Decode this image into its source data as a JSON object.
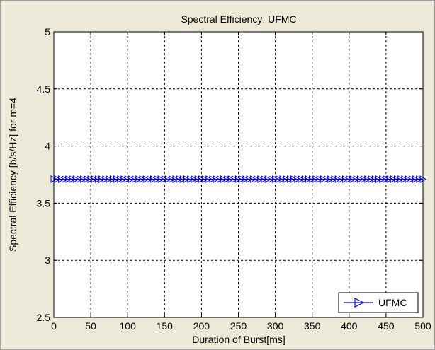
{
  "figure": {
    "background": "#ece9d8",
    "axes_background": "#ffffff"
  },
  "chart_data": {
    "type": "line",
    "title": "Spectral Efficiency: UFMC",
    "xlabel": "Duration of Burst[ms]",
    "ylabel": "Spectral Efficiency [b/s/Hz] for m=4",
    "xlim": [
      0,
      500
    ],
    "ylim": [
      2.5,
      5
    ],
    "xticks": [
      0,
      50,
      100,
      150,
      200,
      250,
      300,
      350,
      400,
      450,
      500
    ],
    "yticks": [
      2.5,
      3,
      3.5,
      4,
      4.5,
      5
    ],
    "xtick_labels": [
      "0",
      "50",
      "100",
      "150",
      "200",
      "250",
      "300",
      "350",
      "400",
      "450",
      "500"
    ],
    "ytick_labels": [
      "2.5",
      "3",
      "3.5",
      "4",
      "4.5",
      "5"
    ],
    "grid": true,
    "grid_style": "dashed",
    "legend_position": "bottom-right",
    "marker_every": 5,
    "series": [
      {
        "name": "UFMC",
        "color": "#0000ff",
        "marker": "triangle-right",
        "x_start": 0,
        "x_end": 500,
        "x_step": 5,
        "y_constant": 3.71
      }
    ]
  }
}
